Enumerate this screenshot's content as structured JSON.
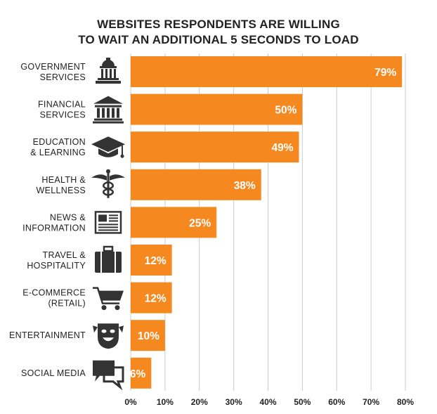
{
  "chart_data": {
    "type": "bar",
    "orientation": "horizontal",
    "title": [
      "WEBSITES RESPONDENTS ARE WILLING",
      "TO WAIT AN ADDITIONAL 5 SECONDS TO LOAD"
    ],
    "categories": [
      [
        "GOVERNMENT",
        "SERVICES"
      ],
      [
        "FINANCIAL",
        "SERVICES"
      ],
      [
        "EDUCATION",
        "& LEARNING"
      ],
      [
        "HEALTH &",
        "WELLNESS"
      ],
      [
        "NEWS &",
        "INFORMATION"
      ],
      [
        "TRAVEL &",
        "HOSPITALITY"
      ],
      [
        "E-COMMERCE",
        "(RETAIL)"
      ],
      [
        "ENTERTAINMENT"
      ],
      [
        "SOCIAL MEDIA"
      ]
    ],
    "icons": [
      "government-building-icon",
      "bank-icon",
      "graduation-cap-icon",
      "caduceus-icon",
      "newspaper-icon",
      "luggage-icon",
      "shopping-cart-icon",
      "theater-mask-icon",
      "chat-bubbles-icon"
    ],
    "values": [
      79,
      50,
      49,
      38,
      25,
      12,
      12,
      10,
      6
    ],
    "value_labels": [
      "79%",
      "50%",
      "49%",
      "38%",
      "25%",
      "12%",
      "12%",
      "10%",
      "6%"
    ],
    "xticks": [
      0,
      10,
      20,
      30,
      40,
      50,
      60,
      70,
      80
    ],
    "xtick_labels": [
      "0%",
      "10%",
      "20%",
      "30%",
      "40%",
      "50%",
      "60%",
      "70%",
      "80%"
    ],
    "xlim": [
      0,
      80
    ],
    "grid": true,
    "bar_color": "#F5891F",
    "grid_color": "#CCCCCC",
    "text_color": "#222222"
  }
}
